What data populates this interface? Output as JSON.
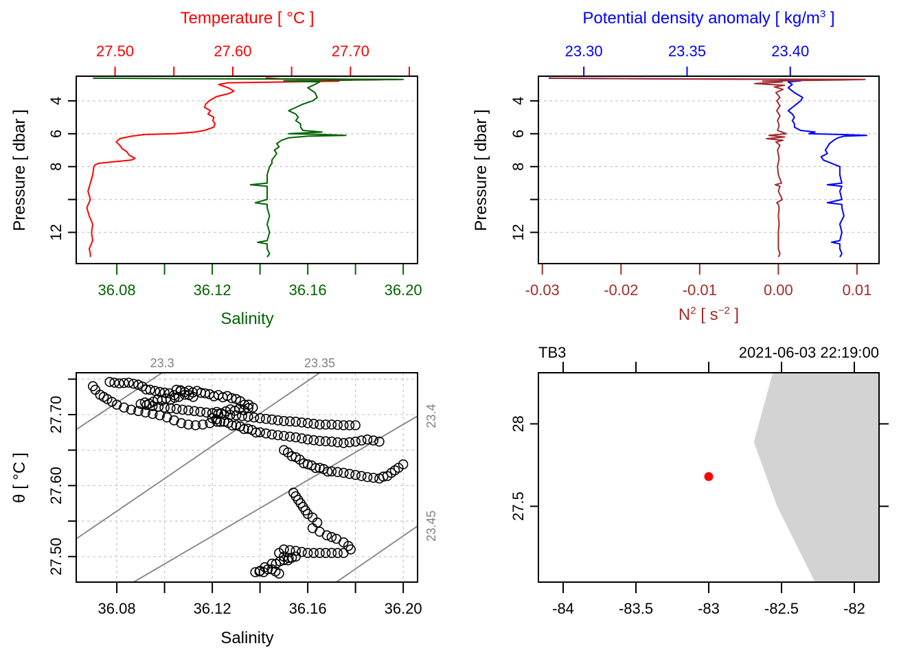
{
  "chart_data": [
    {
      "id": "profile-TS",
      "type": "line",
      "orientation": "vertical-profile",
      "title": "",
      "ylabel": "Pressure [ dbar ]",
      "y_reversed": true,
      "ylim": [
        13.9,
        2.5
      ],
      "yticks": [
        4,
        6,
        8,
        10,
        12
      ],
      "yticklabels": [
        "4",
        "6",
        "8",
        "",
        "12"
      ],
      "grid": true,
      "top_axis": {
        "label": "Temperature [ °C ]",
        "color": "#ff0000",
        "lim": [
          27.467,
          27.757
        ],
        "ticks": [
          27.5,
          27.55,
          27.6,
          27.65,
          27.7,
          27.75
        ],
        "ticklabels": [
          "27.50",
          "",
          "27.60",
          "",
          "27.70",
          ""
        ]
      },
      "bottom_axis": {
        "label": "Salinity",
        "color": "#006400",
        "lim": [
          36.063,
          36.206
        ],
        "ticks": [
          36.08,
          36.1,
          36.12,
          36.14,
          36.16,
          36.18,
          36.2
        ],
        "ticklabels": [
          "36.08",
          "",
          "36.12",
          "",
          "36.16",
          "",
          "36.20"
        ]
      },
      "series": [
        {
          "name": "Temperature",
          "axis": "top",
          "color": "#ff0000",
          "pressure": [
            2.6,
            2.66,
            2.7,
            2.72,
            2.76,
            2.8,
            2.9,
            3.0,
            3.2,
            3.4,
            3.55,
            3.75,
            4.0,
            4.2,
            4.4,
            4.6,
            4.8,
            5.0,
            5.2,
            5.4,
            5.6,
            5.8,
            5.9,
            6.0,
            6.05,
            6.15,
            6.3,
            6.5,
            6.7,
            6.9,
            7.1,
            7.3,
            7.5,
            7.6,
            7.7,
            7.8,
            7.9,
            8.0,
            8.5,
            9.0,
            9.5,
            10.0,
            10.5,
            11.0,
            11.5,
            12.0,
            12.5,
            13.0,
            13.3,
            13.5
          ],
          "values": [
            27.628,
            27.64,
            27.74,
            27.72,
            27.68,
            27.69,
            27.596,
            27.588,
            27.596,
            27.601,
            27.597,
            27.586,
            27.58,
            27.577,
            27.576,
            27.581,
            27.579,
            27.584,
            27.583,
            27.585,
            27.584,
            27.576,
            27.568,
            27.55,
            27.525,
            27.514,
            27.504,
            27.501,
            27.504,
            27.506,
            27.51,
            27.512,
            27.517,
            27.514,
            27.5,
            27.486,
            27.483,
            27.482,
            27.481,
            27.479,
            27.477,
            27.479,
            27.476,
            27.478,
            27.481,
            27.48,
            27.481,
            27.478,
            27.479,
            27.479
          ]
        },
        {
          "name": "Salinity",
          "axis": "bottom",
          "color": "#006400",
          "pressure": [
            2.62,
            2.66,
            2.7,
            2.73,
            2.78,
            2.85,
            3.0,
            3.2,
            3.5,
            3.8,
            4.0,
            4.2,
            4.4,
            4.6,
            4.8,
            5.0,
            5.2,
            5.4,
            5.6,
            5.8,
            5.9,
            6.0,
            6.05,
            6.1,
            6.15,
            6.25,
            6.4,
            6.6,
            6.8,
            7.0,
            7.2,
            7.4,
            7.6,
            7.8,
            8.0,
            8.5,
            9.0,
            9.1,
            9.2,
            9.5,
            10.0,
            10.2,
            10.3,
            10.5,
            11.0,
            11.5,
            12.0,
            12.5,
            12.6,
            12.7,
            13.0,
            13.3,
            13.5
          ],
          "values": [
            36.07,
            36.12,
            36.2,
            36.18,
            36.15,
            36.165,
            36.163,
            36.16,
            36.163,
            36.164,
            36.162,
            36.158,
            36.155,
            36.152,
            36.155,
            36.156,
            36.155,
            36.157,
            36.157,
            36.158,
            36.166,
            36.152,
            36.167,
            36.176,
            36.16,
            36.152,
            36.149,
            36.147,
            36.148,
            36.146,
            36.147,
            36.146,
            36.145,
            36.145,
            36.144,
            36.143,
            36.143,
            36.136,
            36.143,
            36.143,
            36.143,
            36.138,
            36.143,
            36.143,
            36.144,
            36.143,
            36.144,
            36.143,
            36.139,
            36.143,
            36.143,
            36.144,
            36.143
          ]
        }
      ]
    },
    {
      "id": "profile-density-N2",
      "type": "line",
      "orientation": "vertical-profile",
      "title": "",
      "ylabel": "Pressure [ dbar ]",
      "y_reversed": true,
      "ylim": [
        13.9,
        2.5
      ],
      "yticks": [
        4,
        6,
        8,
        10,
        12
      ],
      "yticklabels": [
        "4",
        "6",
        "8",
        "",
        "12"
      ],
      "grid": true,
      "top_axis": {
        "label": "Potential density anomaly [ kg/m³ ]",
        "color": "#0000ff",
        "lim": [
          23.278,
          23.443
        ],
        "ticks": [
          23.3,
          23.35,
          23.4
        ],
        "ticklabels": [
          "23.30",
          "23.35",
          "23.40"
        ]
      },
      "bottom_axis": {
        "label": "N² [ s⁻² ]",
        "color": "#a52a2a",
        "lim": [
          -0.0305,
          0.0128
        ],
        "ticks": [
          -0.03,
          -0.02,
          -0.01,
          0.0,
          0.01
        ],
        "ticklabels": [
          "-0.03",
          "-0.02",
          "-0.01",
          "0.00",
          "0.01"
        ]
      },
      "series": [
        {
          "name": "Potential density anomaly",
          "axis": "top",
          "color": "#0000ff",
          "pressure": [
            2.62,
            2.66,
            2.7,
            2.73,
            2.78,
            2.85,
            3.0,
            3.2,
            3.5,
            3.8,
            4.0,
            4.2,
            4.4,
            4.6,
            4.8,
            5.0,
            5.2,
            5.4,
            5.6,
            5.8,
            5.9,
            6.0,
            6.05,
            6.1,
            6.15,
            6.25,
            6.4,
            6.6,
            6.8,
            7.0,
            7.2,
            7.4,
            7.6,
            7.8,
            8.0,
            8.5,
            9.0,
            9.1,
            9.2,
            9.5,
            10.0,
            10.2,
            10.3,
            10.5,
            11.0,
            11.5,
            12.0,
            12.5,
            12.6,
            12.7,
            13.0,
            13.3,
            13.5
          ],
          "values": [
            23.283,
            23.33,
            23.41,
            23.395,
            23.405,
            23.399,
            23.401,
            23.399,
            23.402,
            23.406,
            23.405,
            23.403,
            23.401,
            23.399,
            23.401,
            23.402,
            23.401,
            23.402,
            23.402,
            23.405,
            23.412,
            23.409,
            23.425,
            23.437,
            23.426,
            23.423,
            23.421,
            23.419,
            23.418,
            23.417,
            23.418,
            23.415,
            23.416,
            23.42,
            23.424,
            23.424,
            23.425,
            23.418,
            23.425,
            23.424,
            23.425,
            23.418,
            23.425,
            23.425,
            23.426,
            23.424,
            23.425,
            23.424,
            23.42,
            23.424,
            23.424,
            23.425,
            23.424
          ]
        },
        {
          "name": "N2",
          "axis": "bottom",
          "color": "#a52a2a",
          "pressure": [
            2.62,
            2.66,
            2.7,
            2.73,
            2.76,
            2.8,
            2.85,
            2.95,
            3.05,
            3.15,
            3.3,
            3.5,
            3.8,
            4.0,
            4.3,
            4.6,
            4.9,
            5.2,
            5.5,
            5.8,
            6.0,
            6.1,
            6.2,
            6.3,
            6.4,
            6.5,
            6.7,
            7.0,
            7.5,
            8.0,
            8.5,
            9.0,
            9.1,
            9.2,
            9.5,
            10.0,
            10.2,
            10.3,
            10.5,
            11.0,
            11.5,
            12.0,
            12.5,
            13.0,
            13.3,
            13.5
          ],
          "values": [
            -0.029,
            -0.015,
            0.011,
            0.008,
            0.003,
            -0.002,
            0.0005,
            -0.003,
            0.0008,
            -0.0005,
            0.0006,
            -0.0003,
            0.0002,
            -0.0002,
            0.0002,
            -0.0002,
            0.0002,
            -0.0001,
            0.0001,
            -0.0001,
            0.001,
            -0.0012,
            0.0008,
            -0.0015,
            0.0006,
            -0.0003,
            0.0002,
            -0.0001,
            0.0001,
            -0.0001,
            0.0,
            0.0004,
            -0.0004,
            0.0002,
            0.0,
            0.0005,
            -0.0002,
            0.0,
            0.0001,
            0.0,
            0.0001,
            0.0,
            0.0,
            0.0,
            0.0002,
            0.0
          ]
        }
      ]
    },
    {
      "id": "TS-diagram",
      "type": "scatter",
      "title": "",
      "xlabel": "Salinity",
      "ylabel": "θ [ °C ]",
      "xlim": [
        36.063,
        36.206
      ],
      "ylim": [
        27.464,
        27.759
      ],
      "xticks": [
        36.08,
        36.1,
        36.12,
        36.14,
        36.16,
        36.18,
        36.2
      ],
      "xticklabels": [
        "36.08",
        "",
        "36.12",
        "",
        "36.16",
        "",
        "36.20"
      ],
      "yticks": [
        27.5,
        27.55,
        27.6,
        27.65,
        27.7,
        27.75
      ],
      "yticklabels": [
        "27.50",
        "",
        "27.60",
        "",
        "27.70",
        ""
      ],
      "grid": true,
      "marker": "open-circle",
      "isopycnals": [
        {
          "label": "23.3",
          "label_side": "top"
        },
        {
          "label": "23.35",
          "label_side": "top"
        },
        {
          "label": "23.4",
          "label_side": "right"
        },
        {
          "label": "23.45",
          "label_side": "right"
        }
      ],
      "isopycnal_lines": [
        {
          "sigma": 23.3,
          "points": [
            [
              36.063,
              27.679
            ],
            [
              36.099,
              27.759
            ]
          ]
        },
        {
          "sigma": 23.35,
          "points": [
            [
              36.063,
              27.525
            ],
            [
              36.165,
              27.759
            ]
          ]
        },
        {
          "sigma": 23.4,
          "points": [
            [
              36.087,
              27.464
            ],
            [
              36.206,
              27.698
            ]
          ]
        },
        {
          "sigma": 23.45,
          "points": [
            [
              36.172,
              27.464
            ],
            [
              36.206,
              27.543
            ]
          ]
        }
      ],
      "points": {
        "salinity": [
          36.07,
          36.071,
          36.073,
          36.076,
          36.078,
          36.08,
          36.083,
          36.086,
          36.089,
          36.092,
          36.095,
          36.098,
          36.101,
          36.104,
          36.107,
          36.11,
          36.113,
          36.116,
          36.119,
          36.122,
          36.077,
          36.081,
          36.085,
          36.089,
          36.094,
          36.098,
          36.102,
          36.106,
          36.09,
          36.095,
          36.1,
          36.105,
          36.11,
          36.115,
          36.12,
          36.125,
          36.13,
          36.135,
          36.14,
          36.145,
          36.15,
          36.155,
          36.16,
          36.165,
          36.17,
          36.175,
          36.18,
          36.12,
          36.125,
          36.13,
          36.135,
          36.14,
          36.145,
          36.15,
          36.155,
          36.16,
          36.165,
          36.17,
          36.175,
          36.18,
          36.185,
          36.19,
          36.15,
          36.155,
          36.16,
          36.165,
          36.17,
          36.175,
          36.18,
          36.185,
          36.19,
          36.195,
          36.198,
          36.2,
          36.154,
          36.156,
          36.158,
          36.16,
          36.162,
          36.164,
          36.162,
          36.165,
          36.168,
          36.172,
          36.175,
          36.177,
          36.178,
          36.175,
          36.17,
          36.165,
          36.16,
          36.155,
          36.15,
          36.148,
          36.15,
          36.152,
          36.155,
          36.15,
          36.145,
          36.142,
          36.14,
          36.138,
          36.145,
          36.148,
          36.112,
          36.105,
          36.117,
          36.13,
          36.137,
          36.12
        ],
        "theta": [
          27.74,
          27.735,
          27.728,
          27.722,
          27.718,
          27.714,
          27.71,
          27.707,
          27.705,
          27.703,
          27.701,
          27.699,
          27.696,
          27.692,
          27.688,
          27.686,
          27.685,
          27.686,
          27.688,
          27.69,
          27.746,
          27.744,
          27.745,
          27.742,
          27.735,
          27.732,
          27.73,
          27.725,
          27.715,
          27.712,
          27.71,
          27.708,
          27.706,
          27.704,
          27.702,
          27.7,
          27.699,
          27.697,
          27.695,
          27.693,
          27.691,
          27.69,
          27.688,
          27.686,
          27.686,
          27.685,
          27.685,
          27.695,
          27.69,
          27.685,
          27.68,
          27.675,
          27.672,
          27.67,
          27.668,
          27.665,
          27.663,
          27.662,
          27.66,
          27.662,
          27.665,
          27.662,
          27.65,
          27.64,
          27.63,
          27.625,
          27.62,
          27.618,
          27.615,
          27.612,
          27.61,
          27.618,
          27.625,
          27.63,
          27.59,
          27.58,
          27.57,
          27.56,
          27.555,
          27.548,
          27.54,
          27.535,
          27.53,
          27.525,
          27.52,
          27.515,
          27.51,
          27.505,
          27.505,
          27.505,
          27.505,
          27.508,
          27.51,
          27.505,
          27.5,
          27.498,
          27.5,
          27.495,
          27.49,
          27.485,
          27.48,
          27.478,
          27.482,
          27.476,
          27.725,
          27.735,
          27.73,
          27.722,
          27.71,
          27.702
        ]
      }
    },
    {
      "id": "station-map",
      "type": "scatter",
      "title": "",
      "top_label_left": "TB3",
      "top_label_right": "2021-06-03 22:19:00",
      "xlim": [
        -84.17,
        -81.83
      ],
      "ylim": [
        27.04,
        28.31
      ],
      "xticks": [
        -84,
        -83.5,
        -83,
        -82.5,
        -82
      ],
      "xticklabels": [
        "-84",
        "-83.5",
        "-83",
        "-82.5",
        "-82"
      ],
      "yticks": [
        27.5,
        28
      ],
      "yticklabels": [
        "27.5",
        "28"
      ],
      "grid": false,
      "land_color": "#d3d3d3",
      "coastline": {
        "lon": [
          -82.56,
          -82.69,
          -82.53,
          -82.27,
          -81.83,
          -81.83
        ],
        "lat": [
          28.31,
          27.89,
          27.5,
          27.04,
          27.04,
          28.31
        ]
      },
      "station": {
        "name": "TB3",
        "lon": -83.0,
        "lat": 27.68,
        "color": "#ff0000"
      }
    }
  ]
}
